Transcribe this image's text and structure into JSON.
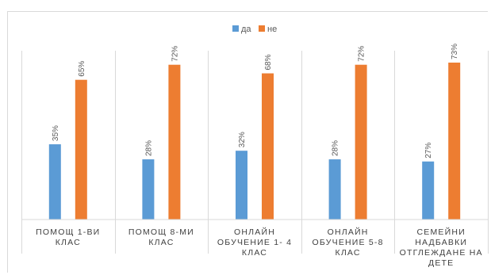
{
  "chart_data": {
    "type": "bar",
    "categories": [
      [
        "ПОМОЩ 1-ВИ",
        "КЛАС"
      ],
      [
        "ПОМОЩ 8-МИ",
        "КЛАС"
      ],
      [
        "ОНЛАЙН",
        "ОБУЧЕНИЕ 1- 4",
        "КЛАС"
      ],
      [
        "ОНЛАЙН",
        "ОБУЧЕНИЕ 5-8",
        "КЛАС"
      ],
      [
        "СЕМЕЙНИ",
        "НАДБАВКИ",
        "ОТГЛЕЖДАНЕ НА",
        "ДЕТЕ"
      ]
    ],
    "series": [
      {
        "name": "да",
        "color": "#5b9bd5",
        "values": [
          35,
          28,
          32,
          28,
          27
        ],
        "labels": [
          "35%",
          "28%",
          "32%",
          "28%",
          "27%"
        ]
      },
      {
        "name": "не",
        "color": "#ed7d31",
        "values": [
          65,
          72,
          68,
          72,
          73
        ],
        "labels": [
          "65%",
          "72%",
          "68%",
          "72%",
          "73%"
        ]
      }
    ],
    "ylim": [
      0,
      80
    ],
    "grid": false,
    "legend_position": "top-center"
  }
}
